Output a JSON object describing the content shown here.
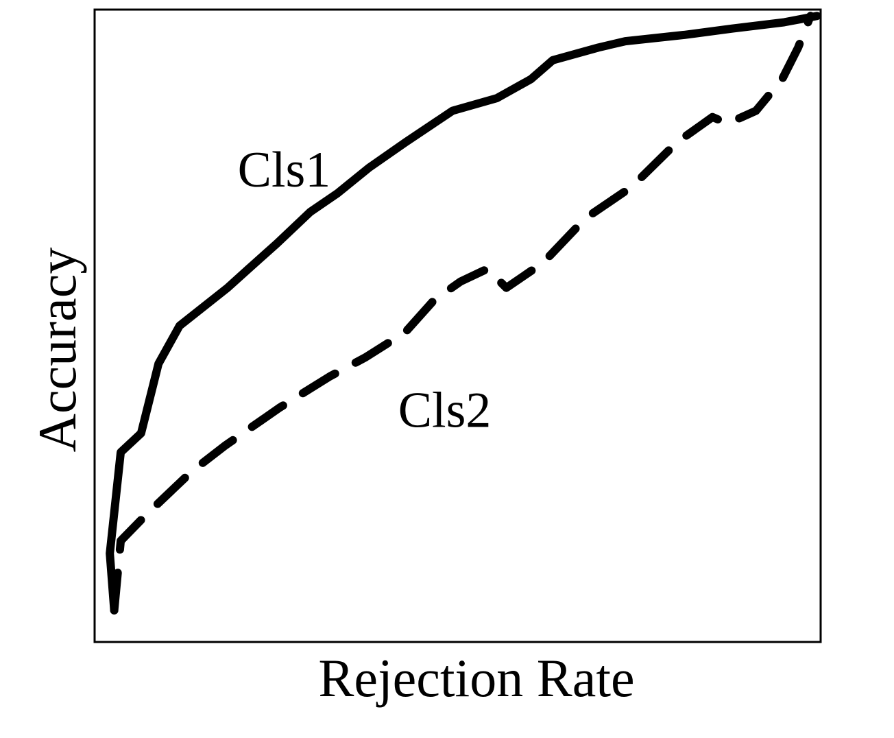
{
  "chart_data": {
    "type": "line",
    "title": "",
    "xlabel": "Rejection Rate",
    "ylabel": "Accuracy",
    "grid": false,
    "legend": "none",
    "xlim": [
      0,
      1
    ],
    "ylim": [
      0,
      1
    ],
    "series": [
      {
        "name": "Cls1",
        "style": "solid",
        "color": "#000000",
        "points": [
          [
            0.027,
            0.05
          ],
          [
            0.021,
            0.14
          ],
          [
            0.036,
            0.3
          ],
          [
            0.064,
            0.33
          ],
          [
            0.088,
            0.44
          ],
          [
            0.117,
            0.5
          ],
          [
            0.183,
            0.56
          ],
          [
            0.212,
            0.59
          ],
          [
            0.251,
            0.63
          ],
          [
            0.297,
            0.68
          ],
          [
            0.335,
            0.71
          ],
          [
            0.378,
            0.75
          ],
          [
            0.428,
            0.79
          ],
          [
            0.493,
            0.84
          ],
          [
            0.554,
            0.86
          ],
          [
            0.601,
            0.89
          ],
          [
            0.631,
            0.92
          ],
          [
            0.694,
            0.94
          ],
          [
            0.731,
            0.95
          ],
          [
            0.812,
            0.96
          ],
          [
            0.878,
            0.97
          ],
          [
            0.95,
            0.98
          ],
          [
            0.973,
            0.985
          ],
          [
            0.995,
            0.99
          ]
        ]
      },
      {
        "name": "Cls2",
        "style": "dashed",
        "color": "#000000",
        "points": [
          [
            0.027,
            0.05
          ],
          [
            0.036,
            0.16
          ],
          [
            0.07,
            0.2
          ],
          [
            0.134,
            0.27
          ],
          [
            0.179,
            0.31
          ],
          [
            0.254,
            0.37
          ],
          [
            0.324,
            0.42
          ],
          [
            0.373,
            0.45
          ],
          [
            0.428,
            0.49
          ],
          [
            0.467,
            0.54
          ],
          [
            0.504,
            0.57
          ],
          [
            0.541,
            0.59
          ],
          [
            0.567,
            0.56
          ],
          [
            0.618,
            0.6
          ],
          [
            0.676,
            0.67
          ],
          [
            0.74,
            0.72
          ],
          [
            0.802,
            0.79
          ],
          [
            0.851,
            0.83
          ],
          [
            0.872,
            0.82
          ],
          [
            0.911,
            0.84
          ],
          [
            0.947,
            0.89
          ],
          [
            0.969,
            0.94
          ],
          [
            0.986,
            0.99
          ]
        ]
      }
    ],
    "annotations": [
      {
        "text": "Cls1",
        "x": 0.197,
        "y": 0.72
      },
      {
        "text": "Cls2",
        "x": 0.418,
        "y": 0.34
      }
    ]
  }
}
